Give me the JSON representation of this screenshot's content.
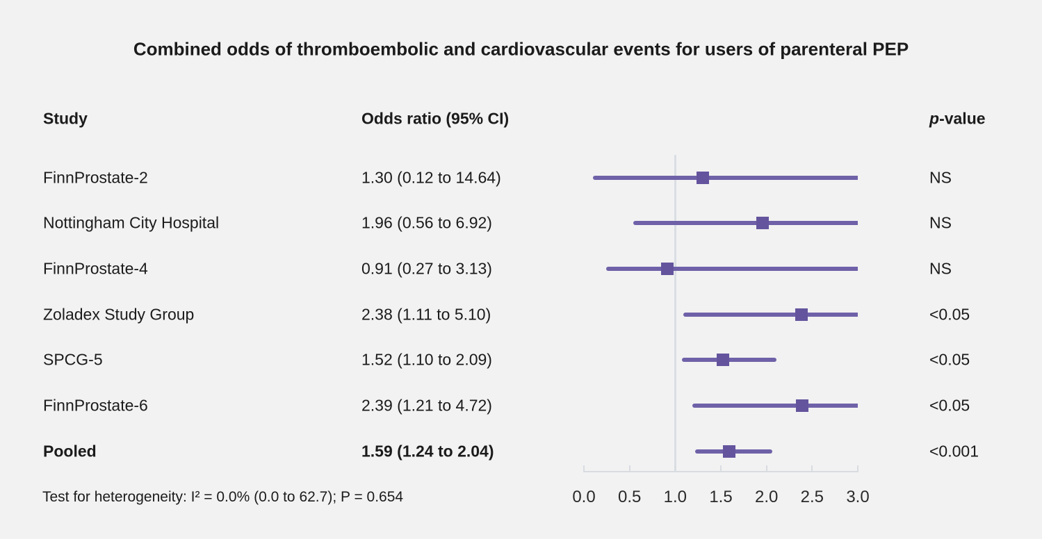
{
  "header": {
    "study": "Study",
    "odds_ratio": "Odds ratio (95% CI)",
    "p_italic": "p",
    "p_rest": "-value"
  },
  "footer": {
    "heterogeneity": "Test for heterogeneity: I² = 0.0% (0.0 to 62.7); P = 0.654"
  },
  "chart_data": {
    "type": "forest",
    "title": "Combined odds of thromboembolic and cardiovascular events for users of parenteral PEP",
    "xlabel": "",
    "ylabel": "",
    "x_axis": {
      "min": 0.0,
      "max": 3.0,
      "ticks": [
        0.0,
        0.5,
        1.0,
        1.5,
        2.0,
        2.5,
        3.0
      ],
      "tick_labels": [
        "0.0",
        "0.5",
        "1.0",
        "1.5",
        "2.0",
        "2.5",
        "3.0"
      ],
      "reference_line": 1.0
    },
    "rows": [
      {
        "study": "FinnProstate-2",
        "or": 1.3,
        "ci_low": 0.12,
        "ci_high": 14.64,
        "or_ci_label": "1.30 (0.12 to 14.64)",
        "p_value": "NS",
        "bold": false
      },
      {
        "study": "Nottingham City Hospital",
        "or": 1.96,
        "ci_low": 0.56,
        "ci_high": 6.92,
        "or_ci_label": "1.96 (0.56 to 6.92)",
        "p_value": "NS",
        "bold": false
      },
      {
        "study": "FinnProstate-4",
        "or": 0.91,
        "ci_low": 0.27,
        "ci_high": 3.13,
        "or_ci_label": "0.91 (0.27 to 3.13)",
        "p_value": "NS",
        "bold": false
      },
      {
        "study": "Zoladex Study Group",
        "or": 2.38,
        "ci_low": 1.11,
        "ci_high": 5.1,
        "or_ci_label": "2.38 (1.11 to 5.10)",
        "p_value": "<0.05",
        "bold": false
      },
      {
        "study": "SPCG-5",
        "or": 1.52,
        "ci_low": 1.1,
        "ci_high": 2.09,
        "or_ci_label": "1.52 (1.10 to 2.09)",
        "p_value": "<0.05",
        "bold": false
      },
      {
        "study": "FinnProstate-6",
        "or": 2.39,
        "ci_low": 1.21,
        "ci_high": 4.72,
        "or_ci_label": "2.39 (1.21 to 4.72)",
        "p_value": "<0.05",
        "bold": false
      },
      {
        "study": "Pooled",
        "or": 1.59,
        "ci_low": 1.24,
        "ci_high": 2.04,
        "or_ci_label": "1.59 (1.24 to 2.04)",
        "p_value": "<0.001",
        "bold": true
      }
    ],
    "layout": {
      "legend": "none",
      "grid": false,
      "ci_truncation": "Confidence intervals wider than 3.0 are truncated flat at the axis maximum"
    },
    "colors": {
      "ci_line": "#6f61a8",
      "marker": "#64549d",
      "reference_line": "#d9dee4",
      "axis": "#d8dce1",
      "background": "#f2f2f2",
      "text": "#1b1b1b"
    }
  }
}
